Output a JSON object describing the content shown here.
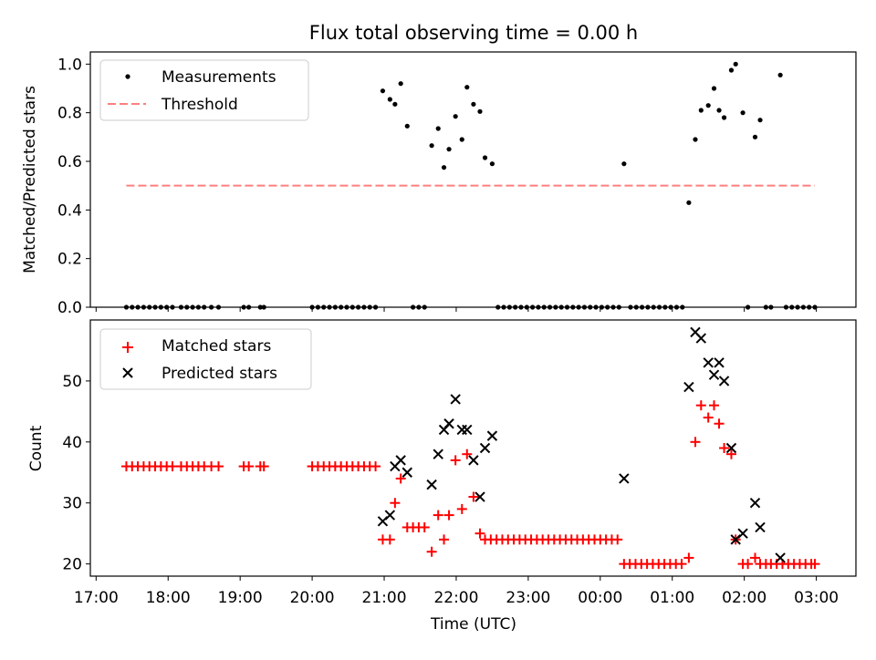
{
  "chart_data": [
    {
      "type": "scatter",
      "title": "Flux total observing time = 0.00 h",
      "ylabel": "Matched/Predicted stars",
      "xlabel": "",
      "xlim": [
        16.92,
        27.55
      ],
      "ylim": [
        0,
        1.05
      ],
      "yticks": [
        0.0,
        0.2,
        0.4,
        0.6,
        0.8,
        1.0
      ],
      "ytick_labels": [
        "0.0",
        "0.2",
        "0.4",
        "0.6",
        "0.8",
        "1.0"
      ],
      "legend_position": "top-left",
      "series": [
        {
          "name": "Measurements",
          "color": "#000000",
          "marker": "dot",
          "points": [
            [
              17.42,
              0
            ],
            [
              17.5,
              0
            ],
            [
              17.58,
              0
            ],
            [
              17.66,
              0
            ],
            [
              17.74,
              0
            ],
            [
              17.82,
              0
            ],
            [
              17.9,
              0
            ],
            [
              17.98,
              0
            ],
            [
              18.06,
              0
            ],
            [
              18.18,
              0
            ],
            [
              18.26,
              0
            ],
            [
              18.34,
              0
            ],
            [
              18.42,
              0
            ],
            [
              18.5,
              0
            ],
            [
              18.6,
              0
            ],
            [
              18.7,
              0
            ],
            [
              19.05,
              0
            ],
            [
              19.12,
              0
            ],
            [
              19.28,
              0
            ],
            [
              19.33,
              0
            ],
            [
              20.0,
              0
            ],
            [
              20.08,
              0
            ],
            [
              20.16,
              0
            ],
            [
              20.24,
              0
            ],
            [
              20.32,
              0
            ],
            [
              20.4,
              0
            ],
            [
              20.48,
              0
            ],
            [
              20.56,
              0
            ],
            [
              20.64,
              0
            ],
            [
              20.72,
              0
            ],
            [
              20.8,
              0
            ],
            [
              20.88,
              0
            ],
            [
              20.98,
              0.89
            ],
            [
              21.08,
              0.855
            ],
            [
              21.15,
              0.835
            ],
            [
              21.23,
              0.92
            ],
            [
              21.32,
              0.745
            ],
            [
              21.4,
              0
            ],
            [
              21.48,
              0
            ],
            [
              21.56,
              0
            ],
            [
              21.66,
              0.665
            ],
            [
              21.75,
              0.735
            ],
            [
              21.83,
              0.575
            ],
            [
              21.9,
              0.65
            ],
            [
              21.99,
              0.785
            ],
            [
              22.08,
              0.69
            ],
            [
              22.15,
              0.905
            ],
            [
              22.24,
              0.835
            ],
            [
              22.33,
              0.805
            ],
            [
              22.4,
              0.615
            ],
            [
              22.5,
              0.59
            ],
            [
              22.58,
              0
            ],
            [
              22.66,
              0
            ],
            [
              22.74,
              0
            ],
            [
              22.82,
              0
            ],
            [
              22.9,
              0
            ],
            [
              22.98,
              0
            ],
            [
              23.06,
              0
            ],
            [
              23.14,
              0
            ],
            [
              23.22,
              0
            ],
            [
              23.3,
              0
            ],
            [
              23.38,
              0
            ],
            [
              23.46,
              0
            ],
            [
              23.54,
              0
            ],
            [
              23.62,
              0
            ],
            [
              23.7,
              0
            ],
            [
              23.78,
              0
            ],
            [
              23.86,
              0
            ],
            [
              23.94,
              0
            ],
            [
              24.02,
              0
            ],
            [
              24.1,
              0
            ],
            [
              24.18,
              0
            ],
            [
              24.26,
              0
            ],
            [
              24.33,
              0.59
            ],
            [
              24.42,
              0
            ],
            [
              24.5,
              0
            ],
            [
              24.58,
              0
            ],
            [
              24.66,
              0
            ],
            [
              24.74,
              0
            ],
            [
              24.82,
              0
            ],
            [
              24.9,
              0
            ],
            [
              24.98,
              0
            ],
            [
              25.06,
              0
            ],
            [
              25.14,
              0
            ],
            [
              25.23,
              0.43
            ],
            [
              25.32,
              0.69
            ],
            [
              25.4,
              0.81
            ],
            [
              25.5,
              0.83
            ],
            [
              25.58,
              0.9
            ],
            [
              25.65,
              0.81
            ],
            [
              25.72,
              0.78
            ],
            [
              25.82,
              0.975
            ],
            [
              25.88,
              1.0
            ],
            [
              25.98,
              0.8
            ],
            [
              26.05,
              0
            ],
            [
              26.15,
              0.7
            ],
            [
              26.22,
              0.77
            ],
            [
              26.3,
              0
            ],
            [
              26.37,
              0
            ],
            [
              26.5,
              0.955
            ],
            [
              26.58,
              0
            ],
            [
              26.66,
              0
            ],
            [
              26.74,
              0
            ],
            [
              26.82,
              0
            ],
            [
              26.9,
              0
            ],
            [
              26.98,
              0
            ]
          ]
        },
        {
          "name": "Threshold",
          "color": "#ff7f7f",
          "linestyle": "dashed",
          "points": [
            [
              17.42,
              0.5
            ],
            [
              26.98,
              0.5
            ]
          ]
        }
      ]
    },
    {
      "type": "scatter",
      "title": "",
      "ylabel": "Count",
      "xlabel": "Time (UTC)",
      "xlim": [
        16.92,
        27.55
      ],
      "ylim": [
        18.0,
        60.0
      ],
      "xticks": [
        17,
        18,
        19,
        20,
        21,
        22,
        23,
        24,
        25,
        26,
        27
      ],
      "xtick_labels": [
        "17:00",
        "18:00",
        "19:00",
        "20:00",
        "21:00",
        "22:00",
        "23:00",
        "00:00",
        "01:00",
        "02:00",
        "03:00"
      ],
      "yticks": [
        20,
        30,
        40,
        50
      ],
      "ytick_labels": [
        "20",
        "30",
        "40",
        "50"
      ],
      "legend_position": "top-left",
      "series": [
        {
          "name": "Matched stars",
          "color": "#ff0000",
          "marker": "plus",
          "points": [
            [
              17.42,
              36
            ],
            [
              17.5,
              36
            ],
            [
              17.58,
              36
            ],
            [
              17.66,
              36
            ],
            [
              17.74,
              36
            ],
            [
              17.82,
              36
            ],
            [
              17.9,
              36
            ],
            [
              17.98,
              36
            ],
            [
              18.06,
              36
            ],
            [
              18.18,
              36
            ],
            [
              18.26,
              36
            ],
            [
              18.34,
              36
            ],
            [
              18.42,
              36
            ],
            [
              18.5,
              36
            ],
            [
              18.6,
              36
            ],
            [
              18.7,
              36
            ],
            [
              19.05,
              36
            ],
            [
              19.12,
              36
            ],
            [
              19.28,
              36
            ],
            [
              19.33,
              36
            ],
            [
              20.0,
              36
            ],
            [
              20.08,
              36
            ],
            [
              20.16,
              36
            ],
            [
              20.24,
              36
            ],
            [
              20.32,
              36
            ],
            [
              20.4,
              36
            ],
            [
              20.48,
              36
            ],
            [
              20.56,
              36
            ],
            [
              20.64,
              36
            ],
            [
              20.72,
              36
            ],
            [
              20.8,
              36
            ],
            [
              20.88,
              36
            ],
            [
              20.98,
              24
            ],
            [
              21.08,
              24
            ],
            [
              21.15,
              30
            ],
            [
              21.23,
              34
            ],
            [
              21.32,
              26
            ],
            [
              21.4,
              26
            ],
            [
              21.48,
              26
            ],
            [
              21.56,
              26
            ],
            [
              21.66,
              22
            ],
            [
              21.75,
              28
            ],
            [
              21.83,
              24
            ],
            [
              21.9,
              28
            ],
            [
              21.99,
              37
            ],
            [
              22.08,
              29
            ],
            [
              22.15,
              38
            ],
            [
              22.24,
              31
            ],
            [
              22.33,
              25
            ],
            [
              22.4,
              24
            ],
            [
              22.48,
              24
            ],
            [
              22.56,
              24
            ],
            [
              22.64,
              24
            ],
            [
              22.72,
              24
            ],
            [
              22.8,
              24
            ],
            [
              22.88,
              24
            ],
            [
              22.96,
              24
            ],
            [
              23.04,
              24
            ],
            [
              23.12,
              24
            ],
            [
              23.2,
              24
            ],
            [
              23.28,
              24
            ],
            [
              23.36,
              24
            ],
            [
              23.44,
              24
            ],
            [
              23.52,
              24
            ],
            [
              23.6,
              24
            ],
            [
              23.68,
              24
            ],
            [
              23.76,
              24
            ],
            [
              23.84,
              24
            ],
            [
              23.92,
              24
            ],
            [
              24.0,
              24
            ],
            [
              24.08,
              24
            ],
            [
              24.16,
              24
            ],
            [
              24.24,
              24
            ],
            [
              24.33,
              20
            ],
            [
              24.41,
              20
            ],
            [
              24.49,
              20
            ],
            [
              24.57,
              20
            ],
            [
              24.65,
              20
            ],
            [
              24.73,
              20
            ],
            [
              24.81,
              20
            ],
            [
              24.89,
              20
            ],
            [
              24.97,
              20
            ],
            [
              25.05,
              20
            ],
            [
              25.13,
              20
            ],
            [
              25.23,
              21
            ],
            [
              25.32,
              40
            ],
            [
              25.4,
              46
            ],
            [
              25.5,
              44
            ],
            [
              25.58,
              46
            ],
            [
              25.65,
              43
            ],
            [
              25.72,
              39
            ],
            [
              25.82,
              38
            ],
            [
              25.88,
              24
            ],
            [
              25.98,
              20
            ],
            [
              26.05,
              20
            ],
            [
              26.15,
              21
            ],
            [
              26.22,
              20
            ],
            [
              26.3,
              20
            ],
            [
              26.37,
              20
            ],
            [
              26.45,
              20
            ],
            [
              26.53,
              20
            ],
            [
              26.61,
              20
            ],
            [
              26.69,
              20
            ],
            [
              26.77,
              20
            ],
            [
              26.85,
              20
            ],
            [
              26.93,
              20
            ],
            [
              26.98,
              20
            ]
          ]
        },
        {
          "name": "Predicted stars",
          "color": "#000000",
          "marker": "x",
          "points": [
            [
              20.98,
              27
            ],
            [
              21.08,
              28
            ],
            [
              21.15,
              36
            ],
            [
              21.23,
              37
            ],
            [
              21.32,
              35
            ],
            [
              21.66,
              33
            ],
            [
              21.75,
              38
            ],
            [
              21.83,
              42
            ],
            [
              21.9,
              43
            ],
            [
              21.99,
              47
            ],
            [
              22.08,
              42
            ],
            [
              22.15,
              42
            ],
            [
              22.24,
              37
            ],
            [
              22.33,
              31
            ],
            [
              22.4,
              39
            ],
            [
              22.5,
              41
            ],
            [
              24.33,
              34
            ],
            [
              25.23,
              49
            ],
            [
              25.32,
              58
            ],
            [
              25.4,
              57
            ],
            [
              25.5,
              53
            ],
            [
              25.58,
              51
            ],
            [
              25.65,
              53
            ],
            [
              25.72,
              50
            ],
            [
              25.82,
              39
            ],
            [
              25.88,
              24
            ],
            [
              25.98,
              25
            ],
            [
              26.15,
              30
            ],
            [
              26.22,
              26
            ],
            [
              26.5,
              21
            ]
          ]
        }
      ]
    }
  ]
}
